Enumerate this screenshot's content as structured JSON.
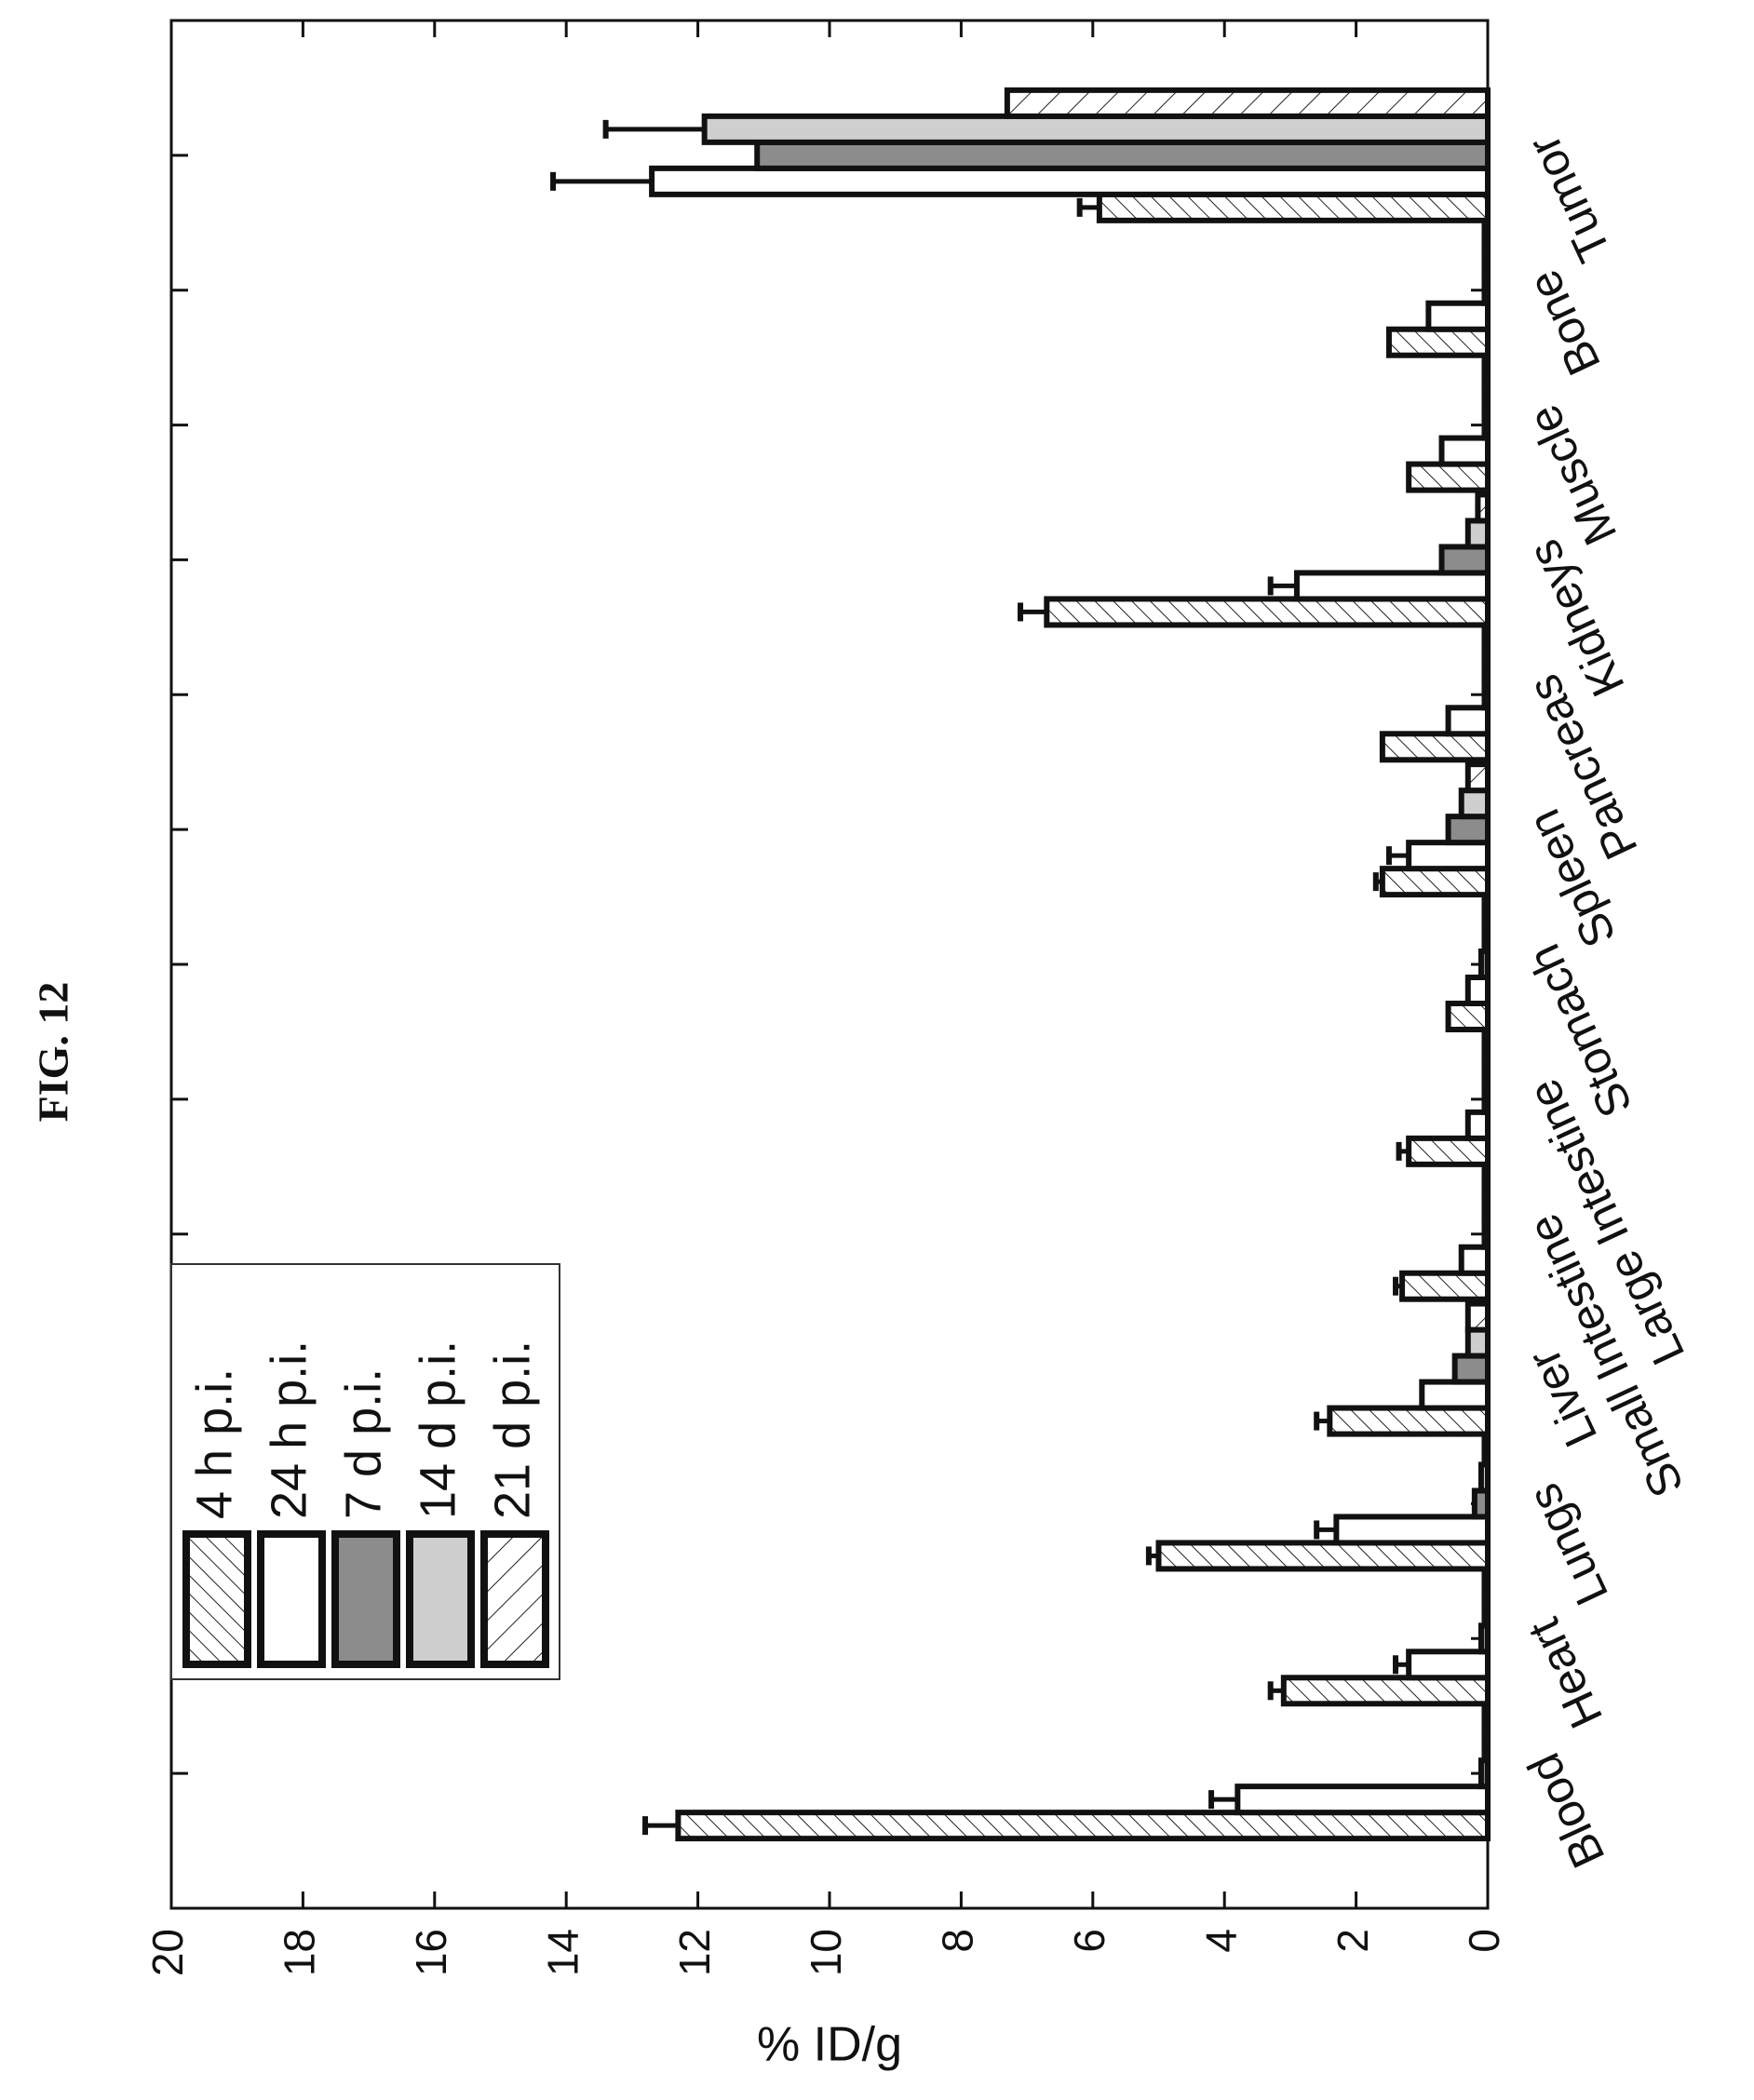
{
  "chart_data": {
    "type": "bar",
    "figure_label": "FIG. 12",
    "y_label": "% ID/g",
    "categories": [
      "Blood",
      "Heart",
      "Lungs",
      "Liver",
      "Small Intestine",
      "Large Intestine",
      "Stomach",
      "Spleen",
      "Pancreas",
      "Kidneys",
      "Muscle",
      "Bone",
      "Tumor"
    ],
    "series": [
      {
        "name": "4 h p.i.",
        "color": "#ffffff",
        "pattern": "hatch-forward",
        "values": [
          12.3,
          3.1,
          5.0,
          2.4,
          1.3,
          1.2,
          0.6,
          1.6,
          1.6,
          6.7,
          1.2,
          1.5,
          5.9
        ],
        "errors": [
          0.5,
          0.2,
          0.15,
          0.2,
          0.1,
          0.15,
          null,
          0.1,
          null,
          0.4,
          null,
          null,
          0.3
        ]
      },
      {
        "name": "24 h p.i.",
        "color": "#ffffff",
        "values": [
          3.8,
          1.2,
          2.3,
          1.0,
          0.4,
          0.3,
          0.3,
          1.2,
          0.6,
          2.9,
          0.7,
          0.9,
          12.7
        ],
        "errors": [
          0.4,
          0.2,
          0.3,
          null,
          null,
          null,
          null,
          0.3,
          null,
          0.4,
          null,
          null,
          1.5
        ]
      },
      {
        "name": "7 d p.i.",
        "color": "#8c8c8c",
        "values": [
          0.1,
          0.1,
          0.2,
          0.5,
          0.05,
          0.05,
          0.1,
          0.6,
          0.05,
          0.7,
          0.05,
          0.05,
          11.1
        ]
      },
      {
        "name": "14 d p.i.",
        "color": "#cfcfcf",
        "values": [
          0.05,
          0.05,
          0.1,
          0.3,
          0.05,
          0.05,
          0.05,
          0.4,
          0.05,
          0.3,
          0.05,
          0.05,
          11.9
        ],
        "errors": [
          null,
          null,
          null,
          null,
          null,
          null,
          null,
          null,
          null,
          null,
          null,
          null,
          1.5
        ]
      },
      {
        "name": "21 d p.i.",
        "color": "#ffffff",
        "pattern": "hatch-back",
        "values": [
          0.05,
          0.05,
          0.05,
          0.3,
          0.05,
          0.05,
          0.05,
          0.3,
          0.05,
          0.15,
          0.05,
          0.05,
          7.3
        ]
      }
    ],
    "ylim": [
      0,
      20
    ],
    "yticks": [
      0,
      2,
      4,
      6,
      8,
      10,
      12,
      14,
      16,
      18,
      20
    ],
    "legend": "upper-left",
    "rotated": true
  }
}
